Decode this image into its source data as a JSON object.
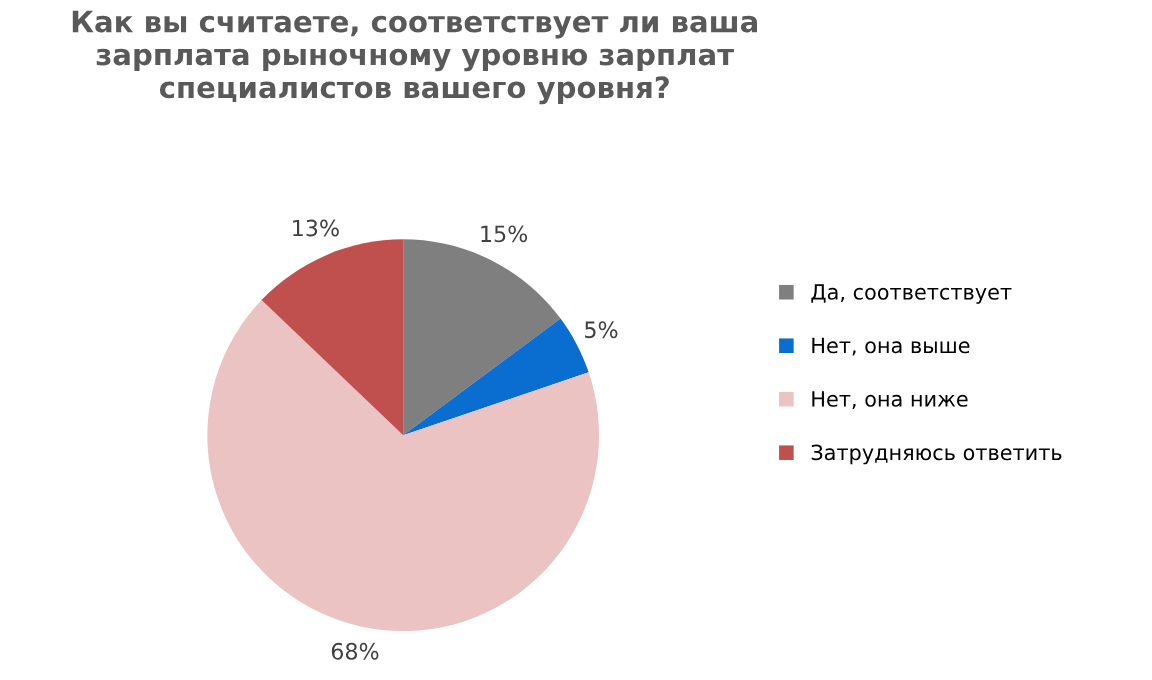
{
  "chart_data": {
    "type": "pie",
    "title": "Как вы считаете, соответствует ли ваша зарплата рыночному уровню зарплат специалистов вашего уровня?",
    "categories": [
      "Да, соответствует",
      "Нет, она выше",
      "Нет, она ниже",
      "Затрудняюсь ответить"
    ],
    "values": [
      15,
      5,
      68,
      13
    ],
    "colors": [
      "#7f7f7f",
      "#0a6ed1",
      "#ebc3c2",
      "#c0504d"
    ],
    "value_labels": [
      "15%",
      "5%",
      "68%",
      "13%"
    ],
    "legend": "right"
  }
}
